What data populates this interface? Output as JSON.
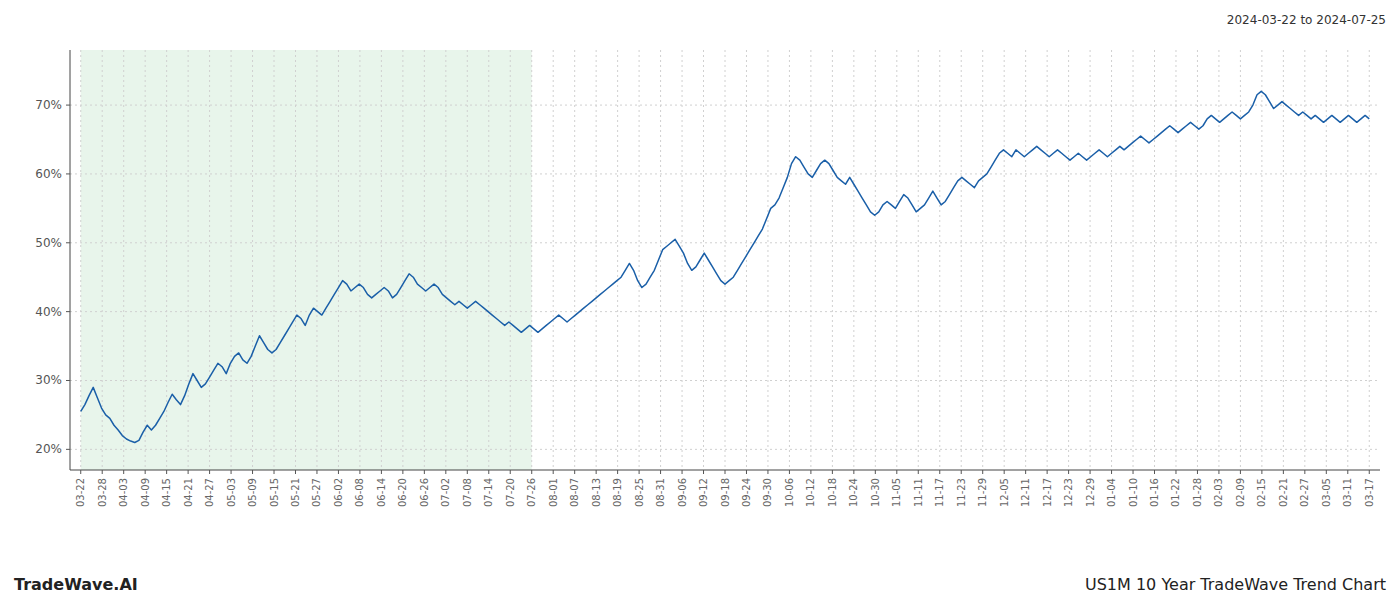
{
  "chart_data": {
    "type": "line",
    "title": "US1M 10 Year TradeWave Trend Chart",
    "subtitle": "2024-03-22 to 2024-07-25",
    "annotations": [
      "TradeWave.AI"
    ],
    "color": "#1a5fa8",
    "grid": true,
    "highlight": {
      "range": [
        0,
        21
      ],
      "color": "#d6edda"
    },
    "xlim": [
      -0.5,
      60.5
    ],
    "xticks": [
      {
        "value": 0,
        "label": "03-22"
      },
      {
        "value": 1,
        "label": "03-28"
      },
      {
        "value": 2,
        "label": "04-03"
      },
      {
        "value": 3,
        "label": "04-09"
      },
      {
        "value": 4,
        "label": "04-15"
      },
      {
        "value": 5,
        "label": "04-21"
      },
      {
        "value": 6,
        "label": "04-27"
      },
      {
        "value": 7,
        "label": "05-03"
      },
      {
        "value": 8,
        "label": "05-09"
      },
      {
        "value": 9,
        "label": "05-15"
      },
      {
        "value": 10,
        "label": "05-21"
      },
      {
        "value": 11,
        "label": "05-27"
      },
      {
        "value": 12,
        "label": "06-02"
      },
      {
        "value": 13,
        "label": "06-08"
      },
      {
        "value": 14,
        "label": "06-14"
      },
      {
        "value": 15,
        "label": "06-20"
      },
      {
        "value": 16,
        "label": "06-26"
      },
      {
        "value": 17,
        "label": "07-02"
      },
      {
        "value": 18,
        "label": "07-08"
      },
      {
        "value": 19,
        "label": "07-14"
      },
      {
        "value": 20,
        "label": "07-20"
      },
      {
        "value": 21,
        "label": "07-26"
      },
      {
        "value": 22,
        "label": "08-01"
      },
      {
        "value": 23,
        "label": "08-07"
      },
      {
        "value": 24,
        "label": "08-13"
      },
      {
        "value": 25,
        "label": "08-19"
      },
      {
        "value": 26,
        "label": "08-25"
      },
      {
        "value": 27,
        "label": "08-31"
      },
      {
        "value": 28,
        "label": "09-06"
      },
      {
        "value": 29,
        "label": "09-12"
      },
      {
        "value": 30,
        "label": "09-18"
      },
      {
        "value": 31,
        "label": "09-24"
      },
      {
        "value": 32,
        "label": "09-30"
      },
      {
        "value": 33,
        "label": "10-06"
      },
      {
        "value": 34,
        "label": "10-12"
      },
      {
        "value": 35,
        "label": "10-18"
      },
      {
        "value": 36,
        "label": "10-24"
      },
      {
        "value": 37,
        "label": "10-30"
      },
      {
        "value": 38,
        "label": "11-05"
      },
      {
        "value": 39,
        "label": "11-11"
      },
      {
        "value": 40,
        "label": "11-17"
      },
      {
        "value": 41,
        "label": "11-23"
      },
      {
        "value": 42,
        "label": "11-29"
      },
      {
        "value": 43,
        "label": "12-05"
      },
      {
        "value": 44,
        "label": "12-11"
      },
      {
        "value": 45,
        "label": "12-17"
      },
      {
        "value": 46,
        "label": "12-23"
      },
      {
        "value": 47,
        "label": "12-29"
      },
      {
        "value": 48,
        "label": "01-04"
      },
      {
        "value": 49,
        "label": "01-10"
      },
      {
        "value": 50,
        "label": "01-16"
      },
      {
        "value": 51,
        "label": "01-22"
      },
      {
        "value": 52,
        "label": "01-28"
      },
      {
        "value": 53,
        "label": "02-03"
      },
      {
        "value": 54,
        "label": "02-09"
      },
      {
        "value": 55,
        "label": "02-15"
      },
      {
        "value": 56,
        "label": "02-21"
      },
      {
        "value": 57,
        "label": "02-27"
      },
      {
        "value": 58,
        "label": "03-05"
      },
      {
        "value": 59,
        "label": "03-11"
      },
      {
        "value": 60,
        "label": "03-17"
      }
    ],
    "ylim": [
      17,
      78
    ],
    "yticks": [
      {
        "value": 20,
        "label": "20%"
      },
      {
        "value": 30,
        "label": "30%"
      },
      {
        "value": 40,
        "label": "40%"
      },
      {
        "value": 50,
        "label": "50%"
      },
      {
        "value": 60,
        "label": "60%"
      },
      {
        "value": 70,
        "label": "70%"
      }
    ],
    "values": [
      25.5,
      26.5,
      27.8,
      29.0,
      27.5,
      26.0,
      25.0,
      24.5,
      23.5,
      22.8,
      22.0,
      21.5,
      21.2,
      21.0,
      21.3,
      22.5,
      23.5,
      22.8,
      23.5,
      24.5,
      25.5,
      26.8,
      28.0,
      27.2,
      26.5,
      27.8,
      29.5,
      31.0,
      30.0,
      29.0,
      29.5,
      30.5,
      31.5,
      32.5,
      32.0,
      31.0,
      32.5,
      33.5,
      34.0,
      33.0,
      32.5,
      33.5,
      35.0,
      36.5,
      35.5,
      34.5,
      34.0,
      34.5,
      35.5,
      36.5,
      37.5,
      38.5,
      39.5,
      39.0,
      38.0,
      39.5,
      40.5,
      40.0,
      39.5,
      40.5,
      41.5,
      42.5,
      43.5,
      44.5,
      44.0,
      43.0,
      43.5,
      44.0,
      43.5,
      42.5,
      42.0,
      42.5,
      43.0,
      43.5,
      43.0,
      42.0,
      42.5,
      43.5,
      44.5,
      45.5,
      45.0,
      44.0,
      43.5,
      43.0,
      43.5,
      44.0,
      43.5,
      42.5,
      42.0,
      41.5,
      41.0,
      41.5,
      41.0,
      40.5,
      41.0,
      41.5,
      41.0,
      40.5,
      40.0,
      39.5,
      39.0,
      38.5,
      38.0,
      38.5,
      38.0,
      37.5,
      37.0,
      37.5,
      38.0,
      37.5,
      37.0,
      37.5,
      38.0,
      38.5,
      39.0,
      39.5,
      39.0,
      38.5,
      39.0,
      39.5,
      40.0,
      40.5,
      41.0,
      41.5,
      42.0,
      42.5,
      43.0,
      43.5,
      44.0,
      44.5,
      45.0,
      46.0,
      47.0,
      46.0,
      44.5,
      43.5,
      44.0,
      45.0,
      46.0,
      47.5,
      49.0,
      49.5,
      50.0,
      50.5,
      49.5,
      48.5,
      47.0,
      46.0,
      46.5,
      47.5,
      48.5,
      47.5,
      46.5,
      45.5,
      44.5,
      44.0,
      44.5,
      45.0,
      46.0,
      47.0,
      48.0,
      49.0,
      50.0,
      51.0,
      52.0,
      53.5,
      55.0,
      55.5,
      56.5,
      58.0,
      59.5,
      61.5,
      62.5,
      62.0,
      61.0,
      60.0,
      59.5,
      60.5,
      61.5,
      62.0,
      61.5,
      60.5,
      59.5,
      59.0,
      58.5,
      59.5,
      58.5,
      57.5,
      56.5,
      55.5,
      54.5,
      54.0,
      54.5,
      55.5,
      56.0,
      55.5,
      55.0,
      56.0,
      57.0,
      56.5,
      55.5,
      54.5,
      55.0,
      55.5,
      56.5,
      57.5,
      56.5,
      55.5,
      56.0,
      57.0,
      58.0,
      59.0,
      59.5,
      59.0,
      58.5,
      58.0,
      59.0,
      59.5,
      60.0,
      61.0,
      62.0,
      63.0,
      63.5,
      63.0,
      62.5,
      63.5,
      63.0,
      62.5,
      63.0,
      63.5,
      64.0,
      63.5,
      63.0,
      62.5,
      63.0,
      63.5,
      63.0,
      62.5,
      62.0,
      62.5,
      63.0,
      62.5,
      62.0,
      62.5,
      63.0,
      63.5,
      63.0,
      62.5,
      63.0,
      63.5,
      64.0,
      63.5,
      64.0,
      64.5,
      65.0,
      65.5,
      65.0,
      64.5,
      65.0,
      65.5,
      66.0,
      66.5,
      67.0,
      66.5,
      66.0,
      66.5,
      67.0,
      67.5,
      67.0,
      66.5,
      67.0,
      68.0,
      68.5,
      68.0,
      67.5,
      68.0,
      68.5,
      69.0,
      68.5,
      68.0,
      68.5,
      69.0,
      70.0,
      71.5,
      72.0,
      71.5,
      70.5,
      69.5,
      70.0,
      70.5,
      70.0,
      69.5,
      69.0,
      68.5,
      69.0,
      68.5,
      68.0,
      68.5,
      68.0,
      67.5,
      68.0,
      68.5,
      68.0,
      67.5,
      68.0,
      68.5,
      68.0,
      67.5,
      68.0,
      68.5,
      68.0
    ]
  }
}
